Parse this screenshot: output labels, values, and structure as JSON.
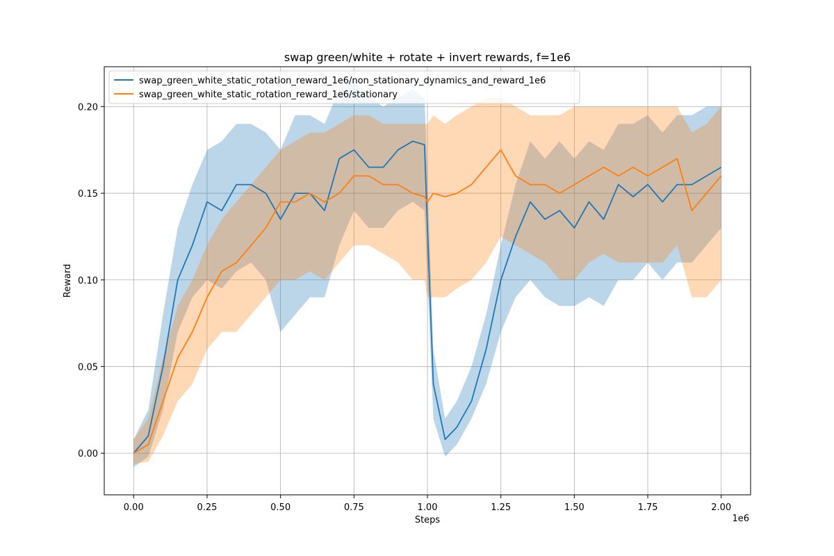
{
  "chart_data": {
    "type": "line",
    "title": "swap green/white + rotate + invert rewards, f=1e6",
    "xlabel": "Steps",
    "ylabel": "Reward",
    "x_offset_label": "1e6",
    "xlim": [
      -0.1,
      2.1
    ],
    "ylim": [
      -0.024,
      0.223
    ],
    "x_ticks": [
      0.0,
      0.25,
      0.5,
      0.75,
      1.0,
      1.25,
      1.5,
      1.75,
      2.0
    ],
    "x_tick_labels": [
      "0.00",
      "0.25",
      "0.50",
      "0.75",
      "1.00",
      "1.25",
      "1.50",
      "1.75",
      "2.00"
    ],
    "y_ticks": [
      0.0,
      0.05,
      0.1,
      0.15,
      0.2
    ],
    "y_tick_labels": [
      "0.00",
      "0.05",
      "0.10",
      "0.15",
      "0.20"
    ],
    "grid": true,
    "legend_position": "top-left",
    "x": [
      0.0,
      0.05,
      0.1,
      0.15,
      0.2,
      0.25,
      0.3,
      0.35,
      0.4,
      0.45,
      0.5,
      0.55,
      0.6,
      0.65,
      0.7,
      0.75,
      0.8,
      0.85,
      0.9,
      0.95,
      0.99,
      1.0,
      1.02,
      1.06,
      1.1,
      1.15,
      1.2,
      1.25,
      1.3,
      1.35,
      1.4,
      1.45,
      1.5,
      1.55,
      1.6,
      1.65,
      1.7,
      1.75,
      1.8,
      1.85,
      1.9,
      1.95,
      2.0
    ],
    "series": [
      {
        "name": "swap_green_white_static_rotation_reward_1e6/non_stationary_dynamics_and_reward_1e6",
        "color": "#1f77b4",
        "values": [
          0.0,
          0.01,
          0.05,
          0.1,
          0.12,
          0.145,
          0.14,
          0.155,
          0.155,
          0.15,
          0.135,
          0.15,
          0.15,
          0.14,
          0.17,
          0.175,
          0.165,
          0.165,
          0.175,
          0.18,
          0.178,
          0.13,
          0.04,
          0.008,
          0.015,
          0.03,
          0.06,
          0.1,
          0.125,
          0.145,
          0.135,
          0.14,
          0.13,
          0.145,
          0.135,
          0.155,
          0.148,
          0.155,
          0.145,
          0.155,
          0.155,
          0.16,
          0.165
        ],
        "lower": [
          -0.008,
          -0.002,
          0.025,
          0.07,
          0.09,
          0.1,
          0.095,
          0.105,
          0.11,
          0.1,
          0.07,
          0.08,
          0.09,
          0.09,
          0.12,
          0.14,
          0.13,
          0.13,
          0.14,
          0.145,
          0.14,
          0.1,
          0.02,
          -0.002,
          0.005,
          0.02,
          0.04,
          0.07,
          0.09,
          0.1,
          0.09,
          0.085,
          0.085,
          0.09,
          0.085,
          0.1,
          0.1,
          0.11,
          0.1,
          0.11,
          0.11,
          0.12,
          0.13
        ],
        "upper": [
          0.008,
          0.025,
          0.08,
          0.13,
          0.155,
          0.175,
          0.18,
          0.19,
          0.19,
          0.185,
          0.175,
          0.195,
          0.195,
          0.19,
          0.21,
          0.215,
          0.205,
          0.2,
          0.205,
          0.21,
          0.205,
          0.16,
          0.06,
          0.02,
          0.03,
          0.05,
          0.08,
          0.12,
          0.155,
          0.18,
          0.17,
          0.18,
          0.17,
          0.18,
          0.175,
          0.19,
          0.19,
          0.195,
          0.185,
          0.195,
          0.195,
          0.2,
          0.2
        ]
      },
      {
        "name": "swap_green_white_static_rotation_reward_1e6/stationary",
        "color": "#ff7f0e",
        "values": [
          0.0,
          0.005,
          0.03,
          0.055,
          0.07,
          0.09,
          0.105,
          0.11,
          0.12,
          0.13,
          0.145,
          0.145,
          0.15,
          0.145,
          0.15,
          0.16,
          0.16,
          0.155,
          0.155,
          0.15,
          0.148,
          0.145,
          0.15,
          0.148,
          0.15,
          0.155,
          0.165,
          0.175,
          0.16,
          0.155,
          0.155,
          0.15,
          0.155,
          0.16,
          0.165,
          0.16,
          0.165,
          0.16,
          0.165,
          0.17,
          0.14,
          0.15,
          0.16
        ],
        "lower": [
          -0.006,
          -0.005,
          0.01,
          0.03,
          0.04,
          0.06,
          0.07,
          0.07,
          0.08,
          0.09,
          0.1,
          0.1,
          0.105,
          0.1,
          0.11,
          0.12,
          0.12,
          0.115,
          0.11,
          0.1,
          0.1,
          0.09,
          0.09,
          0.09,
          0.095,
          0.1,
          0.11,
          0.125,
          0.12,
          0.115,
          0.11,
          0.1,
          0.1,
          0.11,
          0.115,
          0.11,
          0.11,
          0.11,
          0.11,
          0.12,
          0.09,
          0.09,
          0.1
        ],
        "upper": [
          0.008,
          0.02,
          0.055,
          0.085,
          0.1,
          0.12,
          0.135,
          0.145,
          0.155,
          0.165,
          0.175,
          0.18,
          0.185,
          0.185,
          0.19,
          0.195,
          0.195,
          0.19,
          0.19,
          0.19,
          0.19,
          0.19,
          0.195,
          0.19,
          0.195,
          0.2,
          0.205,
          0.205,
          0.2,
          0.195,
          0.195,
          0.195,
          0.2,
          0.2,
          0.2,
          0.2,
          0.2,
          0.2,
          0.2,
          0.2,
          0.185,
          0.19,
          0.2
        ]
      }
    ]
  }
}
